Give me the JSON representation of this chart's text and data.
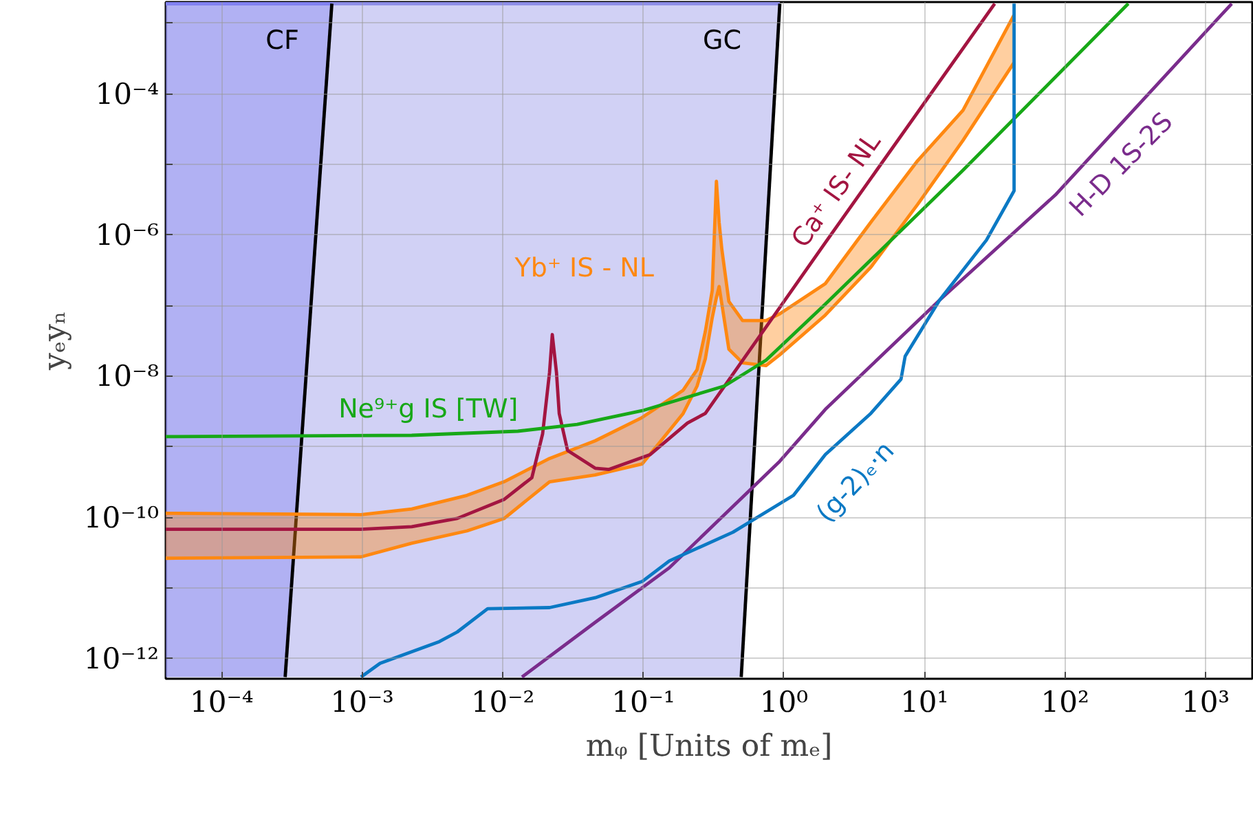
{
  "chart_data": {
    "type": "line",
    "xlabel": "mᵩ [Units of mₑ]",
    "ylabel": "yₑyₙ",
    "log": "xy",
    "grid": true,
    "marker": "none",
    "xlim": [
      4e-05,
      2150
    ],
    "ylim": [
      5.2e-13,
      0.002
    ],
    "xticks": [
      {
        "value": 0.0001,
        "label": "10⁻⁴"
      },
      {
        "value": 0.001,
        "label": "10⁻³"
      },
      {
        "value": 0.01,
        "label": "10⁻²"
      },
      {
        "value": 0.1,
        "label": "10⁻¹"
      },
      {
        "value": 1,
        "label": "10⁰"
      },
      {
        "value": 10,
        "label": "10¹"
      },
      {
        "value": 100,
        "label": "10²"
      },
      {
        "value": 1000,
        "label": "10³"
      }
    ],
    "yticks": [
      {
        "value": 1e-12,
        "label": "10⁻¹²"
      },
      {
        "value": 1e-11,
        "label": null
      },
      {
        "value": 1e-10,
        "label": "10⁻¹⁰"
      },
      {
        "value": 1e-09,
        "label": null
      },
      {
        "value": 1e-08,
        "label": "10⁻⁸"
      },
      {
        "value": 1e-07,
        "label": null
      },
      {
        "value": 1e-06,
        "label": "10⁻⁶"
      },
      {
        "value": 1e-05,
        "label": null
      },
      {
        "value": 0.0001,
        "label": "10⁻⁴"
      },
      {
        "value": 0.001,
        "label": null
      }
    ],
    "series": [
      {
        "color": "#8c8ce6",
        "x": [
          4e-05,
          0.497,
          0.935
        ],
        "values": [
          0.0019,
          0.0019,
          0.0019
        ],
        "lower": [
          5.5e-13,
          5.5e-13,
          0.0019
        ],
        "upper": [
          0.0019,
          0.0019,
          0.0019
        ]
      },
      {
        "color": "#8181f0",
        "x": [
          4e-05,
          0.000283,
          0.000608
        ],
        "values": [
          0.0019,
          0.0019,
          0.0019
        ],
        "lower": [
          5.5e-13,
          5.5e-13,
          0.0019
        ],
        "upper": [
          0.0019,
          0.0019,
          0.0019
        ]
      },
      {
        "name": "GC",
        "color": "#000000",
        "x": [
          0.497,
          0.935
        ],
        "values": [
          5.5e-13,
          0.0019
        ]
      },
      {
        "name": "CF",
        "color": "#000000",
        "x": [
          0.000283,
          0.000608
        ],
        "values": [
          5.5e-13,
          0.0019
        ]
      },
      {
        "name": "Yb⁺ IS - NL",
        "color": "#ff8811",
        "x": [
          4e-05,
          0.00098,
          0.00225,
          0.00556,
          0.0102,
          0.0215,
          0.0454,
          0.098,
          0.192,
          0.241,
          0.276,
          0.309,
          0.331,
          0.346,
          0.362,
          0.406,
          0.508,
          0.746,
          0.935,
          1.97,
          4.15,
          8.93,
          18.8,
          43.4
        ],
        "lower": [
          2.65e-11,
          2.77e-11,
          4.33e-11,
          6.46e-11,
          9.66e-11,
          3.21e-10,
          4.01e-10,
          5.73e-10,
          2.98e-09,
          7.26e-09,
          1.77e-08,
          6.73e-08,
          1.31e-07,
          1.87e-07,
          1.05e-07,
          2.42e-08,
          1.55e-08,
          1.42e-08,
          2.02e-08,
          7.36e-08,
          3.5e-07,
          2.71e-06,
          2.2e-05,
          0.000279
        ],
        "values": [
          1.15e-10,
          1.1e-10,
          1.32e-10,
          2.06e-10,
          3.21e-10,
          6.85e-10,
          1.22e-09,
          2.61e-09,
          6.35e-09,
          1.24e-08,
          4.31e-08,
          1.64e-07,
          5.78e-06,
          1.52e-06,
          6.24e-07,
          1.15e-07,
          6.15e-08,
          6.15e-08,
          7.69e-08,
          2.05e-07,
          1.52e-06,
          1.13e-05,
          5.86e-05,
          0.00132
        ],
        "upper": [
          1.15e-10,
          1.1e-10,
          1.32e-10,
          2.06e-10,
          3.21e-10,
          6.85e-10,
          1.22e-09,
          2.61e-09,
          6.35e-09,
          1.24e-08,
          4.31e-08,
          1.64e-07,
          5.78e-06,
          1.52e-06,
          6.24e-07,
          1.15e-07,
          6.15e-08,
          6.15e-08,
          7.69e-08,
          2.05e-07,
          1.52e-06,
          1.13e-05,
          5.86e-05,
          0.00132
        ]
      },
      {
        "color": "#ff8811",
        "x": [
          4e-05,
          0.00098,
          0.00225,
          0.00556,
          0.0102,
          0.0215,
          0.0454,
          0.098,
          0.192,
          0.241,
          0.276,
          0.309,
          0.331,
          0.346,
          0.362,
          0.406,
          0.508,
          0.746,
          0.935,
          1.97,
          4.15,
          8.93,
          18.8,
          43.4
        ],
        "values": [
          2.65e-11,
          2.77e-11,
          4.33e-11,
          6.46e-11,
          9.66e-11,
          3.21e-10,
          4.01e-10,
          5.73e-10,
          2.98e-09,
          7.26e-09,
          1.77e-08,
          6.73e-08,
          1.31e-07,
          1.87e-07,
          1.05e-07,
          2.42e-08,
          1.55e-08,
          1.42e-08,
          2.02e-08,
          7.36e-08,
          3.5e-07,
          2.71e-06,
          2.2e-05,
          0.000279
        ]
      },
      {
        "name": "Ca⁺ IS- NL",
        "color": "#a31541",
        "x": [
          4e-05,
          0.00098,
          0.00225,
          0.00474,
          0.0102,
          0.0161,
          0.0192,
          0.0215,
          0.0225,
          0.0241,
          0.0252,
          0.0289,
          0.0454,
          0.057,
          0.112,
          0.206,
          0.276,
          1.97,
          31.6
        ],
        "values": [
          6.8e-11,
          6.8e-11,
          7.4e-11,
          9.7e-11,
          1.8e-10,
          3.67e-10,
          1.53e-09,
          1.13e-08,
          3.9e-08,
          1.13e-08,
          2.98e-09,
          8.9e-10,
          5e-10,
          4.8e-10,
          7.8e-10,
          2.18e-09,
          2.98e-09,
          7.8e-07,
          0.0019
        ]
      },
      {
        "name": "Ne⁹⁺g IS [TW]",
        "color": "#17a817",
        "x": [
          4e-05,
          0.00225,
          0.0128,
          0.0338,
          0.098,
          0.378,
          0.746,
          1.97,
          18.8,
          282
        ],
        "values": [
          1.4e-09,
          1.46e-09,
          1.67e-09,
          2.08e-09,
          3.26e-09,
          7.3e-09,
          1.69e-08,
          1.05e-07,
          8.3e-06,
          0.0019
        ]
      },
      {
        "name": "H-D 1S-2S",
        "color": "#7a2c8c",
        "x": [
          0.0137,
          0.0454,
          0.153,
          0.935,
          1.97,
          12.8,
          85.3,
          1535
        ],
        "values": [
          5.5e-13,
          3.27e-12,
          1.94e-11,
          6.27e-10,
          3.4e-09,
          1.2e-07,
          3.7e-06,
          0.0019
        ]
      },
      {
        "name": "(g-2)ₑ·n",
        "color": "#0b79c4",
        "x": [
          0.00098,
          0.00134,
          0.00354,
          0.00474,
          0.0078,
          0.0215,
          0.0454,
          0.098,
          0.153,
          0.434,
          1.17,
          1.97,
          4.15,
          6.81,
          7.29,
          12.8,
          27.6,
          43.4,
          43.4
        ],
        "values": [
          5.5e-13,
          8.6e-13,
          1.75e-12,
          2.39e-12,
          5.1e-12,
          5.3e-12,
          7.3e-12,
          1.24e-11,
          2.43e-11,
          6.2e-11,
          2.06e-10,
          7.8e-10,
          2.98e-09,
          9.1e-09,
          1.93e-08,
          1.2e-07,
          8.5e-07,
          4.24e-06,
          0.0019
        ]
      }
    ]
  }
}
